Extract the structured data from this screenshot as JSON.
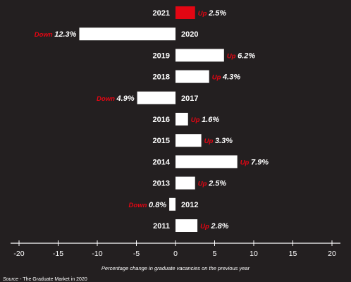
{
  "chart_data": {
    "type": "bar",
    "orientation": "horizontal",
    "categories": [
      "2021",
      "2020",
      "2019",
      "2018",
      "2017",
      "2016",
      "2015",
      "2014",
      "2013",
      "2012",
      "2011"
    ],
    "values": [
      2.5,
      -12.3,
      6.2,
      4.3,
      -4.9,
      1.6,
      3.3,
      7.9,
      2.5,
      -0.8,
      2.8
    ],
    "direction_labels": [
      "Up",
      "Down",
      "Up",
      "Up",
      "Down",
      "Up",
      "Up",
      "Up",
      "Up",
      "Down",
      "Up"
    ],
    "value_labels": [
      "2.5%",
      "12.3%",
      "6.2%",
      "4.3%",
      "4.9%",
      "1.6%",
      "3.3%",
      "7.9%",
      "2.5%",
      "0.8%",
      "2.8%"
    ],
    "highlight_category": "2021",
    "xlim": [
      -20,
      20
    ],
    "xticks": [
      -20,
      -15,
      -10,
      -5,
      0,
      5,
      10,
      15,
      20
    ],
    "xlabel": "Percentage change in graduate vacancies on the previous year",
    "title": "",
    "grid": false
  },
  "source_prefix": "Source",
  "source_text": "- The Graduate Market in 2020",
  "colors": {
    "background": "#231f20",
    "bar": "#ffffff",
    "highlight_bar": "#e30613",
    "accent_text": "#e30613",
    "text": "#ffffff"
  }
}
